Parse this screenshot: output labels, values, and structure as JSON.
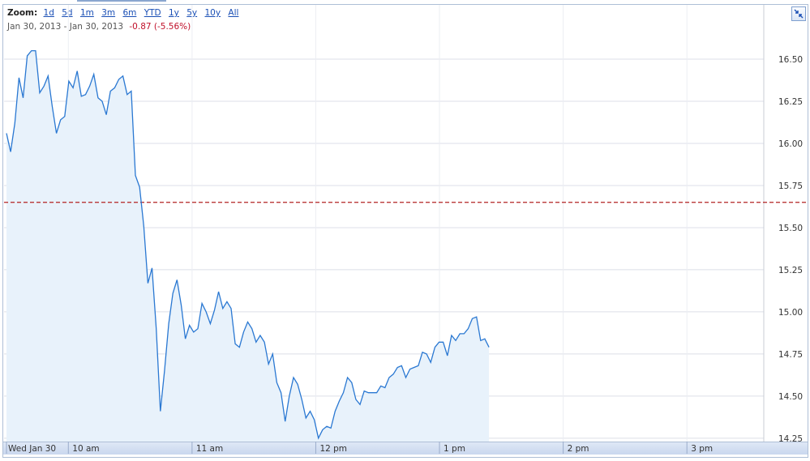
{
  "zoom": {
    "label": "Zoom:",
    "options": [
      "1d",
      "5d",
      "1m",
      "3m",
      "6m",
      "YTD",
      "1y",
      "5y",
      "10y",
      "All"
    ]
  },
  "range": {
    "start": "Jan 30, 2013",
    "separator": "-",
    "end": "Jan 30, 2013",
    "change": "-0.87 (-5.56%)"
  },
  "icons": {
    "expand": "collapse-arrows-icon"
  },
  "colors": {
    "line": "#2a78d2",
    "fill": "#e8f2fb",
    "prev_close": "#b22222",
    "grid": "#dcdfe8"
  },
  "chart_data": {
    "type": "area",
    "title": "",
    "xlabel": "",
    "ylabel": "",
    "x_unit": "minutes since 9:30 am",
    "ylim": [
      14.23,
      16.63
    ],
    "xlim": [
      0,
      390
    ],
    "y_ticks": [
      "14.25",
      "14.50",
      "14.75",
      "15.00",
      "15.25",
      "15.50",
      "15.75",
      "16.00",
      "16.25",
      "16.50"
    ],
    "x_ticks": [
      {
        "label": "Wed Jan 30",
        "t": 0
      },
      {
        "label": "10 am",
        "t": 30
      },
      {
        "label": "11 am",
        "t": 90
      },
      {
        "label": "12 pm",
        "t": 150
      },
      {
        "label": "1 pm",
        "t": 210
      },
      {
        "label": "2 pm",
        "t": 270
      },
      {
        "label": "3 pm",
        "t": 330
      }
    ],
    "previous_close": 15.65,
    "series": [
      {
        "values": [
          16.06,
          15.95,
          16.12,
          16.39,
          16.27,
          16.52,
          16.55,
          16.55,
          16.3,
          16.34,
          16.4,
          16.22,
          16.06,
          16.14,
          16.16,
          16.37,
          16.33,
          16.43,
          16.28,
          16.29,
          16.34,
          16.41,
          16.27,
          16.25,
          16.17,
          16.31,
          16.33,
          16.38,
          16.4,
          16.29,
          16.31,
          15.81,
          15.74,
          15.51,
          15.17,
          15.26,
          14.9,
          14.41,
          14.65,
          14.93,
          15.11,
          15.19,
          15.04,
          14.84,
          14.92,
          14.88,
          14.9,
          15.05,
          15.0,
          14.93,
          15.01,
          15.12,
          15.02,
          15.06,
          15.02,
          14.81,
          14.79,
          14.88,
          14.94,
          14.9,
          14.82,
          14.86,
          14.82,
          14.69,
          14.75,
          14.58,
          14.52,
          14.35,
          14.5,
          14.61,
          14.57,
          14.48,
          14.37,
          14.41,
          14.36,
          14.25,
          14.3,
          14.32,
          14.31,
          14.41,
          14.47,
          14.52,
          14.61,
          14.58,
          14.48,
          14.45,
          14.53,
          14.52,
          14.52,
          14.52,
          14.56,
          14.55,
          14.61,
          14.63,
          14.67,
          14.68,
          14.61,
          14.66,
          14.67,
          14.68,
          14.76,
          14.75,
          14.7,
          14.79,
          14.82,
          14.82,
          14.74,
          14.86,
          14.83,
          14.87,
          14.87,
          14.9,
          14.96,
          14.97,
          14.83,
          14.84,
          14.79
        ]
      }
    ]
  }
}
